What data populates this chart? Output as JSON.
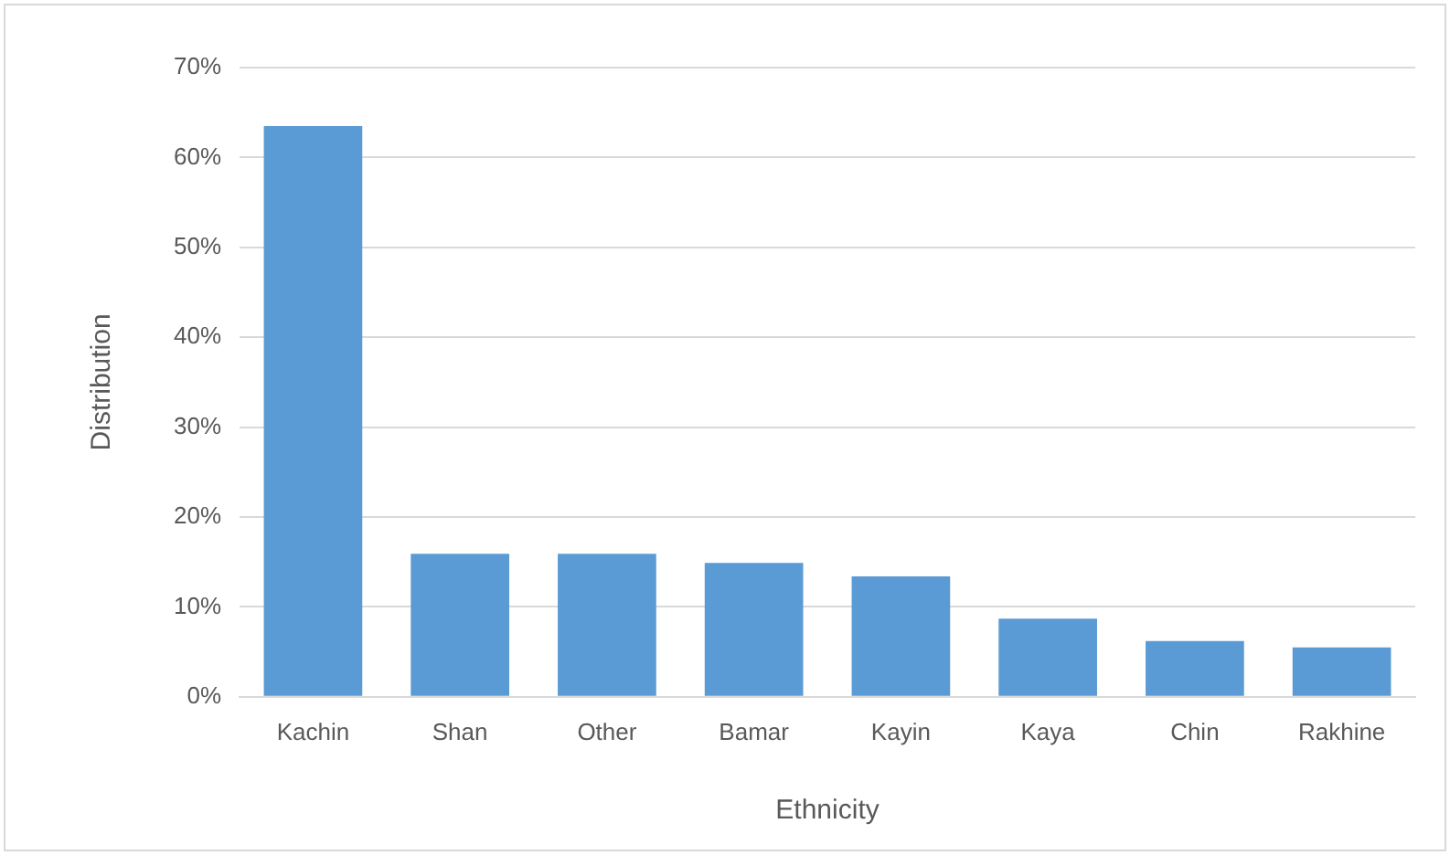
{
  "chart_data": {
    "type": "bar",
    "xlabel": "Ethnicity",
    "ylabel": "Distribution",
    "categories": [
      "Kachin",
      "Shan",
      "Other",
      "Bamar",
      "Kayin",
      "Kaya",
      "Chin",
      "Rakhine"
    ],
    "values": [
      63.5,
      15.9,
      15.9,
      14.9,
      13.4,
      8.7,
      6.2,
      5.5
    ],
    "color": "#5b9bd5",
    "ylim": [
      0,
      70
    ],
    "yticks": [
      {
        "value": 0,
        "label": "0%"
      },
      {
        "value": 10,
        "label": "10%"
      },
      {
        "value": 20,
        "label": "20%"
      },
      {
        "value": 30,
        "label": "30%"
      },
      {
        "value": 40,
        "label": "40%"
      },
      {
        "value": 50,
        "label": "50%"
      },
      {
        "value": 60,
        "label": "60%"
      },
      {
        "value": 70,
        "label": "70%"
      }
    ],
    "grid": "y",
    "legend": false
  }
}
